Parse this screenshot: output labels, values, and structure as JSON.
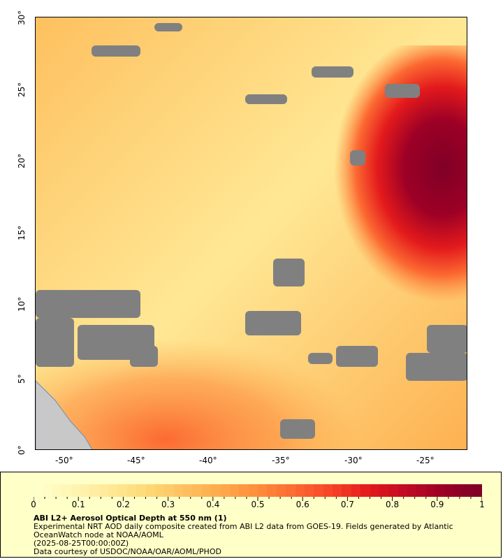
{
  "map": {
    "title": "ABI L2+ Aerosol Optical Depth at 550 nm (1)",
    "description": "Experimental NRT AOD daily composite created from ABI L2 data from GOES-19. Fields generated by Atlantic OceanWatch node at NOAA/AOML",
    "date": "(2025-08-25T00:00:00Z)",
    "credit": "Data courtesy of USDOC/NOAA/OAR/AOML/PHOD",
    "lon_labels": [
      "-50°",
      "-45°",
      "-40°",
      "-35°",
      "-30°",
      "-25°"
    ],
    "lat_labels": [
      "30°",
      "25°",
      "20°",
      "15°",
      "10°",
      "5°",
      "0°"
    ],
    "colorbar_labels": [
      "0",
      "0.1",
      "0.2",
      "0.3",
      "0.4",
      "0.5",
      "0.6",
      "0.7",
      "0.8",
      "0.9",
      "1"
    ],
    "colors": {
      "missing": "#808080",
      "land": "#c8c8c8",
      "panel": "#ffffc8",
      "scale": [
        "#ffffcc",
        "#fff4b0",
        "#ffe895",
        "#fed976",
        "#fec05f",
        "#feaa4a",
        "#fd8d3c",
        "#fc6a32",
        "#f84427",
        "#e31a1c",
        "#c20b23",
        "#9d0026",
        "#800026"
      ]
    }
  }
}
